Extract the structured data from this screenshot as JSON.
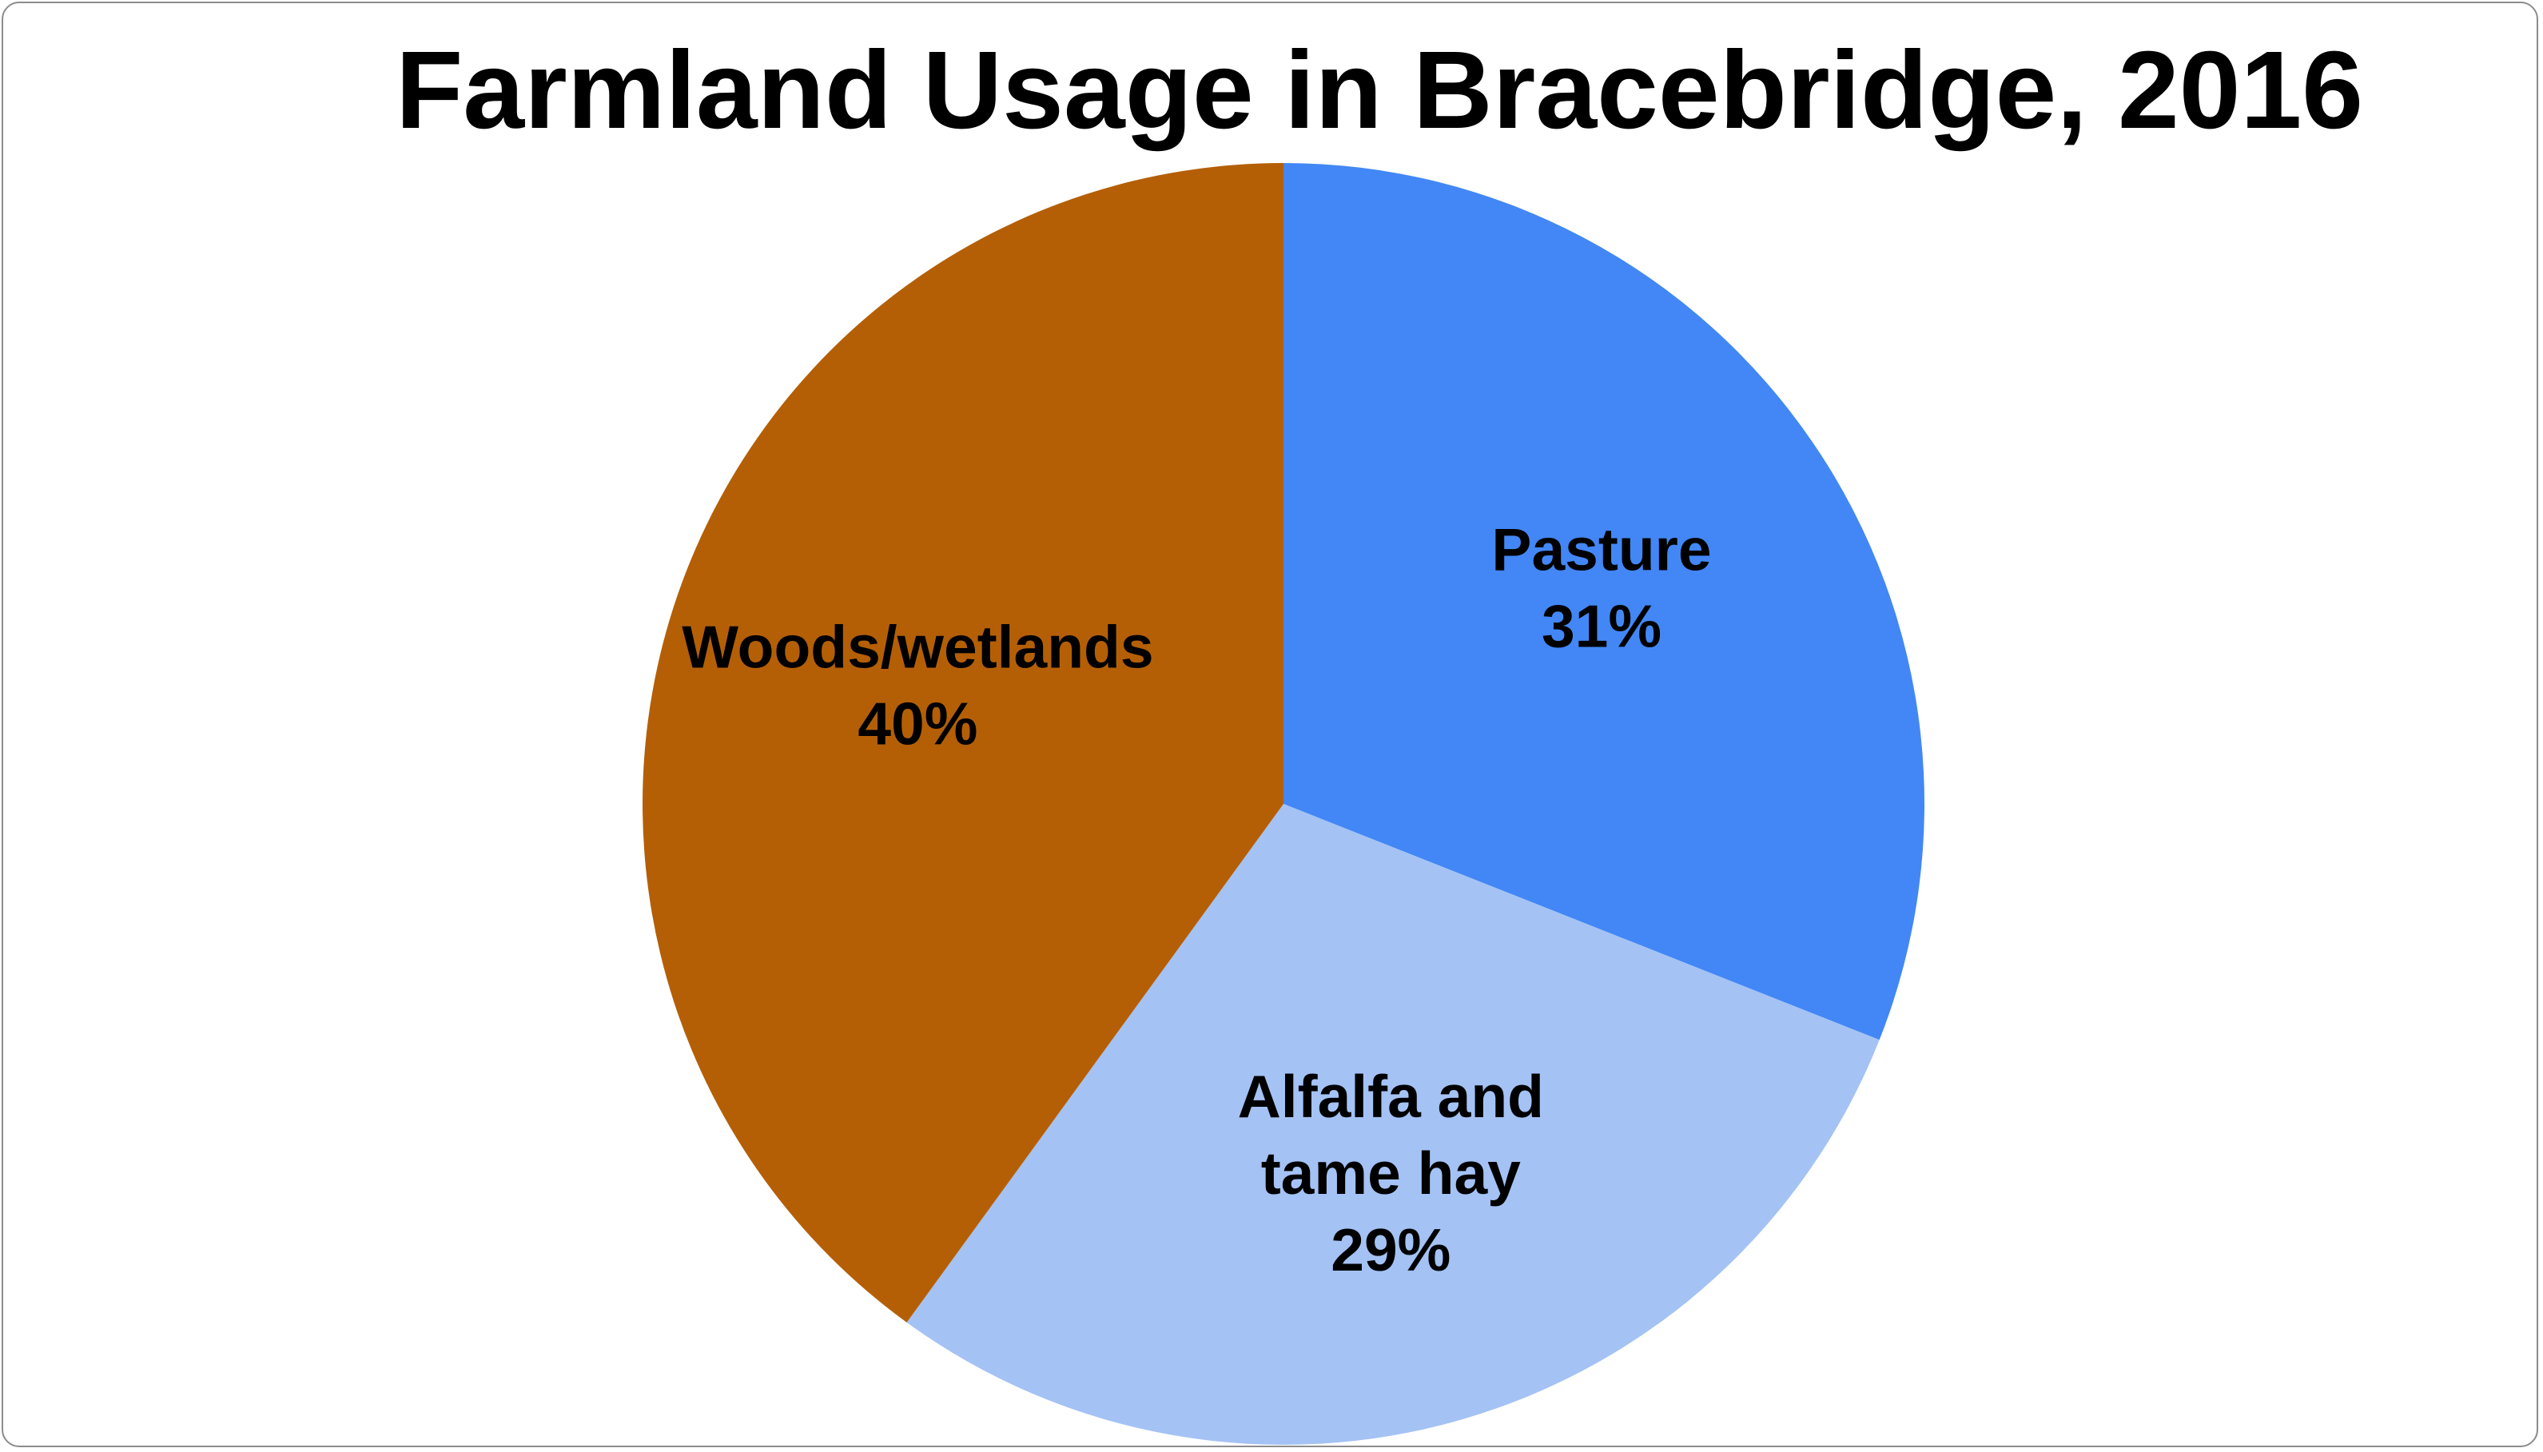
{
  "chart_data": {
    "type": "pie",
    "title": "Farmland Usage in Bracebridge, 2016",
    "start_angle": "12 o'clock",
    "direction": "clockwise",
    "slices": [
      {
        "category": "Pasture",
        "value": 31,
        "value_label": "31%",
        "label_lines": [
          "Pasture",
          "31%"
        ],
        "color": "#4287F5"
      },
      {
        "category": "Alfalfa and tame hay",
        "value": 29,
        "value_label": "29%",
        "label_lines": [
          "Alfalfa and",
          "tame hay",
          "29%"
        ],
        "color": "#A4C2F4"
      },
      {
        "category": "Woods/wetlands",
        "value": 40,
        "value_label": "40%",
        "label_lines": [
          "Woods/wetlands",
          "40%"
        ],
        "color": "#B45F06"
      }
    ]
  }
}
